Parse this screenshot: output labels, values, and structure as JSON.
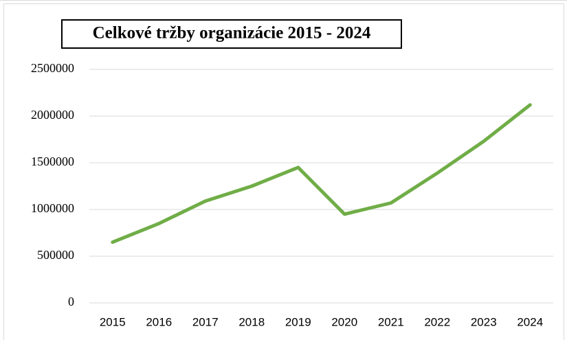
{
  "chart_data": {
    "type": "line",
    "title": "Celkové tržby organizácie 2015 - 2024",
    "categories": [
      "2015",
      "2016",
      "2017",
      "2018",
      "2019",
      "2020",
      "2021",
      "2022",
      "2023",
      "2024"
    ],
    "values": [
      650000,
      850000,
      1090000,
      1250000,
      1450000,
      950000,
      1070000,
      1390000,
      1730000,
      2120000
    ],
    "color": "#70ad47",
    "ylim": [
      0,
      2500000
    ],
    "yticks": [
      0,
      500000,
      1000000,
      1500000,
      2000000,
      2500000
    ],
    "grid": true
  }
}
